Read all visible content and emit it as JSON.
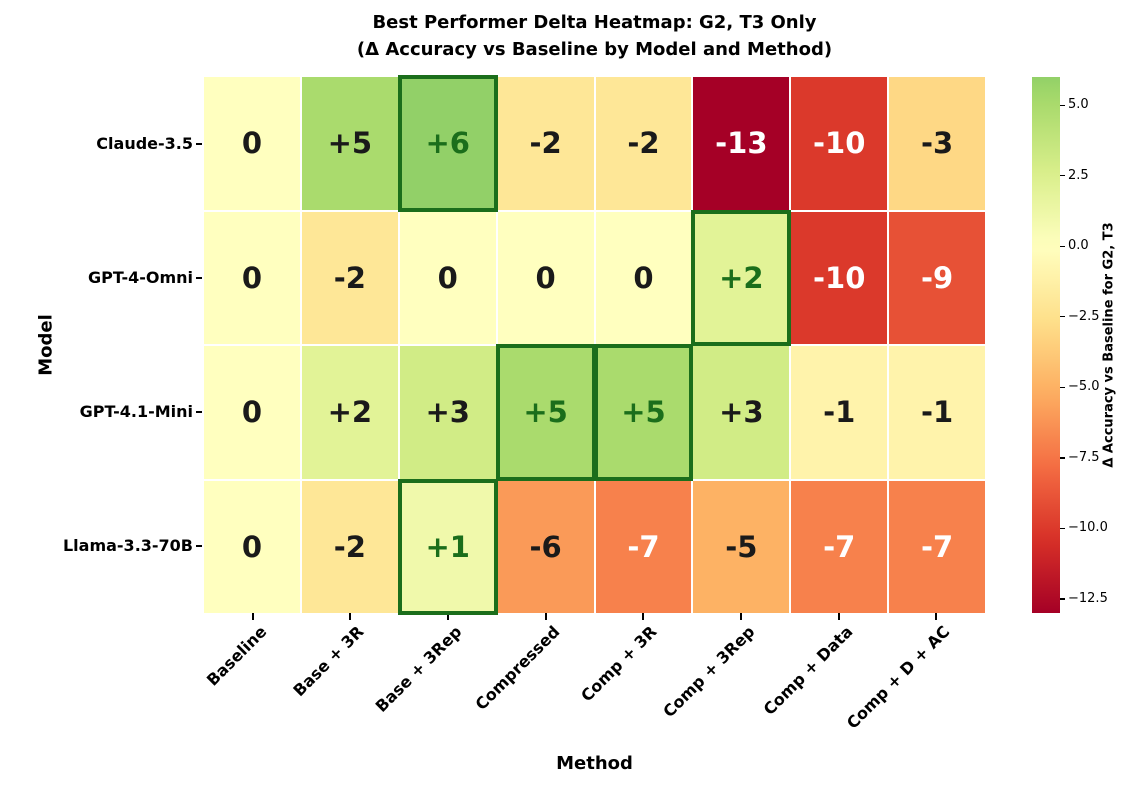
{
  "title": {
    "line1": "Best Performer Delta Heatmap: G2, T3 Only",
    "line2": "(Δ Accuracy vs Baseline by Model and Method)"
  },
  "axes": {
    "x_label": "Method",
    "y_label": "Model"
  },
  "chart_data": {
    "type": "heatmap",
    "title": "Best Performer Delta Heatmap: G2, T3 Only (Δ Accuracy vs Baseline by Model and Method)",
    "xlabel": "Method",
    "ylabel": "Model",
    "x_categories": [
      "Baseline",
      "Base + 3R",
      "Base + 3Rep",
      "Compressed",
      "Comp + 3R",
      "Comp + 3Rep",
      "Comp + Data",
      "Comp + D + AC"
    ],
    "y_categories": [
      "Claude-3.5",
      "GPT-4-Omni",
      "GPT-4.1-Mini",
      "Llama-3.3-70B"
    ],
    "values": [
      [
        0,
        5,
        6,
        -2,
        -2,
        -13,
        -10,
        -3
      ],
      [
        0,
        -2,
        0,
        0,
        0,
        2,
        -10,
        -9
      ],
      [
        0,
        2,
        3,
        5,
        5,
        3,
        -1,
        -1
      ],
      [
        0,
        -2,
        1,
        -6,
        -7,
        -5,
        -7,
        -7
      ]
    ],
    "cell_labels": [
      [
        "0",
        "+5",
        "+6",
        "-2",
        "-2",
        "-13",
        "-10",
        "-3"
      ],
      [
        "0",
        "-2",
        "0",
        "0",
        "0",
        "+2",
        "-10",
        "-9"
      ],
      [
        "0",
        "+2",
        "+3",
        "+5",
        "+5",
        "+3",
        "-1",
        "-1"
      ],
      [
        "0",
        "-2",
        "+1",
        "-6",
        "-7",
        "-5",
        "-7",
        "-7"
      ]
    ],
    "highlighted_cells": [
      [
        0,
        2
      ],
      [
        1,
        5
      ],
      [
        2,
        3
      ],
      [
        2,
        4
      ],
      [
        3,
        2
      ]
    ],
    "colormap": {
      "name": "RdYlGn",
      "stops": [
        "#a50026",
        "#d73027",
        "#f46d43",
        "#fdae61",
        "#fee08b",
        "#ffffbf",
        "#d9ef8b",
        "#a6d96a",
        "#66bd63",
        "#1a9850",
        "#006837"
      ],
      "cmap_domain": [
        -13,
        13
      ]
    },
    "colorbar": {
      "label": "Δ Accuracy vs Baseline for G2, T3",
      "vmin": -13,
      "vmax": 6,
      "ticks": [
        5.0,
        2.5,
        0.0,
        -2.5,
        -5.0,
        -7.5,
        -10.0,
        -12.5
      ],
      "tick_labels": [
        "5.0",
        "2.5",
        "0.0",
        "−2.5",
        "−5.0",
        "−7.5",
        "−10.0",
        "−12.5"
      ]
    },
    "legend_position": "right",
    "grid": false
  },
  "colors": {
    "highlight_border": "#1b6e1b",
    "highlight_text": "#1b6e1b",
    "annot_dark": "#1a1a1a",
    "annot_light": "#ffffff",
    "background": "#ffffff"
  }
}
